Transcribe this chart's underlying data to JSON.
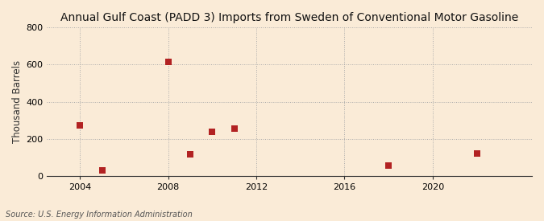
{
  "title": "Annual Gulf Coast (PADD 3) Imports from Sweden of Conventional Motor Gasoline",
  "ylabel": "Thousand Barrels",
  "source": "Source: U.S. Energy Information Administration",
  "years": [
    2004,
    2005,
    2008,
    2009,
    2010,
    2011,
    2018,
    2022
  ],
  "values": [
    275,
    30,
    615,
    115,
    240,
    255,
    55,
    120
  ],
  "marker_color": "#b22222",
  "marker_size": 28,
  "background_color": "#faebd7",
  "grid_color_h": "#aaaaaa",
  "grid_color_v": "#aaaaaa",
  "spine_color": "#333333",
  "xlim": [
    2002.5,
    2024.5
  ],
  "ylim": [
    0,
    800
  ],
  "yticks": [
    0,
    200,
    400,
    600,
    800
  ],
  "xticks": [
    2004,
    2008,
    2012,
    2016,
    2020
  ],
  "title_fontsize": 10,
  "label_fontsize": 8.5,
  "tick_fontsize": 8,
  "source_fontsize": 7
}
